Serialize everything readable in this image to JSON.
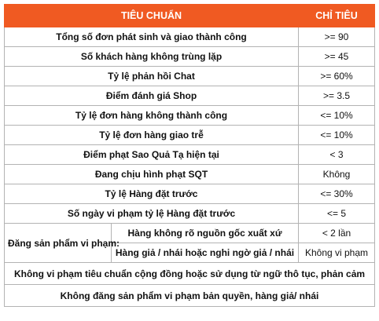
{
  "table": {
    "header": {
      "criteria": "TIÊU CHUẨN",
      "target": "CHỈ TIÊU"
    },
    "rows": [
      {
        "criteria": "Tổng số đơn phát sinh và giao thành công",
        "target": ">= 90"
      },
      {
        "criteria": "Số khách hàng không trùng lặp",
        "target": ">= 45"
      },
      {
        "criteria": "Tỷ lệ phản hồi Chat",
        "target": ">= 60%"
      },
      {
        "criteria": "Điểm đánh giá Shop",
        "target": ">= 3.5"
      },
      {
        "criteria": "Tỷ lệ đơn hàng không thành công",
        "target": "<= 10%"
      },
      {
        "criteria": "Tỷ lệ đơn hàng giao trễ",
        "target": "<= 10%"
      },
      {
        "criteria": "Điểm phạt Sao Quả Tạ hiện tại",
        "target": "< 3"
      },
      {
        "criteria": "Đang chịu hình phạt SQT",
        "target": "Không"
      },
      {
        "criteria": "Tỷ lệ Hàng đặt trước",
        "target": "<= 30%"
      },
      {
        "criteria": "Số ngày vi phạm tỷ lệ Hàng đặt trước",
        "target": "<= 5"
      }
    ],
    "violation_group": {
      "label": "Đăng sản phẩm vi phạm:",
      "items": [
        {
          "criteria": "Hàng không rõ nguồn gốc xuất xứ",
          "target": "< 2 lần"
        },
        {
          "criteria": "Hàng giả / nhái hoặc nghi ngờ giả / nhái",
          "target": "Không vi phạm"
        }
      ]
    },
    "footer_rows": [
      "Không vi phạm tiêu chuẩn cộng đồng hoặc sử dụng từ ngữ thô tục, phản cảm",
      "Không đăng sản phẩm vi phạm bản quyền, hàng giả/ nhái"
    ],
    "colors": {
      "header_bg": "#f05a22",
      "header_text": "#ffffff",
      "border": "#b3b3b3"
    }
  }
}
